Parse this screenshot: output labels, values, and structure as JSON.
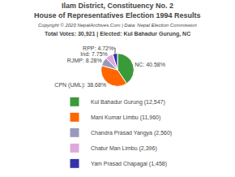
{
  "chart_data": {
    "type": "pie",
    "title": "Ilam District, Constituency No. 2",
    "subtitle": "House of Representatives Election 1994 Results",
    "annotations": [
      "Copyright © 2020 NepalArchives.Com | Data: Nepal Election Commission",
      "Total Votes: 30,921 | Elected: Kul Bahadur Gurung, NC"
    ],
    "categories": [
      "Kul Bahadur Gurung (12,547)",
      "Mani Kumar Limbu (11,960)",
      "Chandra Prasad Yangya (2,560)",
      "Chatur Man Limbu (2,396)",
      "Yam Prasad Chapagai (1,458)"
    ],
    "values": [
      40.58,
      38.68,
      8.28,
      7.75,
      4.72
    ],
    "value_labels": [
      "NC: 40.58%",
      "CPN (UML): 38.68%",
      "RJMP: 8.28%",
      "Ind: 7.75%",
      "RPP: 4.72%"
    ],
    "colors": [
      "#3a9a3a",
      "#ff6600",
      "#9999bb",
      "#ddaadd",
      "#3333aa"
    ],
    "data_labels": true,
    "legend": "bottom"
  }
}
